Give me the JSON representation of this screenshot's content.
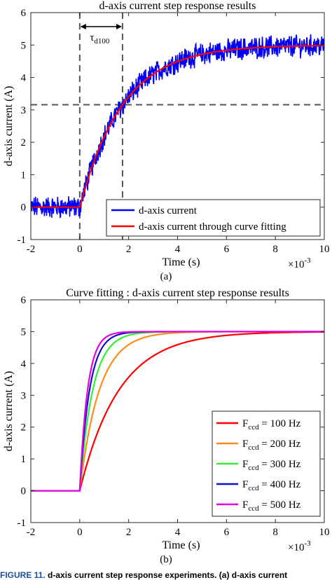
{
  "chart_data": [
    {
      "type": "line",
      "title": "d-axis current step response results",
      "xlabel": "Time (s)",
      "ylabel": "d-axis current (A)",
      "x_exponent_label": "×10",
      "x_exponent": "-3",
      "xlim": [
        -2,
        10
      ],
      "ylim": [
        -1,
        6
      ],
      "xticks": [
        -2,
        0,
        2,
        4,
        6,
        8,
        10
      ],
      "yticks": [
        -1,
        0,
        1,
        2,
        3,
        4,
        5,
        6
      ],
      "grid": false,
      "legend_position": "bottom-right",
      "panel_label": "(a)",
      "step_time": 0,
      "step_amplitude": 5,
      "time_constant": 1.75,
      "reference_lines": {
        "vertical": [
          0,
          1.75
        ],
        "horizontal": [
          3.16
        ],
        "style": "dashed"
      },
      "annotation": {
        "symbol": "τ",
        "subscript": "d100",
        "from": 0,
        "to": 1.75
      },
      "series": [
        {
          "name": "d-axis current",
          "color": "#0000ff",
          "noise_amplitude": 0.3,
          "x": [
            -2,
            -1.5,
            -1,
            -0.5,
            0,
            0.5,
            1,
            1.5,
            1.75,
            2,
            2.5,
            3,
            3.5,
            4,
            5,
            6,
            7,
            8,
            9,
            10
          ],
          "y": [
            0,
            0,
            0,
            0,
            0,
            1.2,
            2.1,
            2.8,
            3.1,
            3.4,
            3.9,
            4.2,
            4.4,
            4.6,
            4.8,
            4.9,
            4.95,
            4.97,
            4.98,
            4.99
          ]
        },
        {
          "name": "d-axis current through curve fitting",
          "color": "#ff0000",
          "x": [
            -2,
            -1.5,
            -1,
            -0.5,
            0,
            0.5,
            1,
            1.5,
            1.75,
            2,
            2.5,
            3,
            3.5,
            4,
            5,
            6,
            7,
            8,
            9,
            10
          ],
          "y": [
            0,
            0,
            0,
            0,
            0,
            1.23,
            2.18,
            2.88,
            3.16,
            3.41,
            3.88,
            4.2,
            4.42,
            4.59,
            4.79,
            4.9,
            4.95,
            4.97,
            4.99,
            4.99
          ]
        }
      ]
    },
    {
      "type": "line",
      "title": "Curve fitting : d-axis current step response results",
      "xlabel": "Time (s)",
      "ylabel": "d-axis current (A)",
      "x_exponent_label": "×10",
      "x_exponent": "-3",
      "xlim": [
        -2,
        10
      ],
      "ylim": [
        -1,
        6
      ],
      "xticks": [
        -2,
        0,
        2,
        4,
        6,
        8,
        10
      ],
      "yticks": [
        -1,
        0,
        1,
        2,
        3,
        4,
        5,
        6
      ],
      "grid": false,
      "legend_position": "bottom-right",
      "panel_label": "(b)",
      "step_time": 0,
      "step_amplitude": 5,
      "series": [
        {
          "name_main": "F",
          "name_sub": "ccd",
          "name_rest": " = 100 Hz",
          "color": "#ff0000",
          "tau": 1.6,
          "x": [
            -2,
            0,
            1,
            2,
            3,
            4,
            6,
            8,
            10
          ],
          "y": [
            0,
            0,
            2.23,
            3.57,
            4.27,
            4.59,
            4.88,
            4.97,
            4.99
          ]
        },
        {
          "name_main": "F",
          "name_sub": "ccd",
          "name_rest": " = 200 Hz",
          "color": "#ff8c1a",
          "tau": 0.8,
          "x": [
            -2,
            0,
            1,
            2,
            3,
            4,
            6,
            8,
            10
          ],
          "y": [
            0,
            0,
            3.57,
            4.59,
            4.88,
            4.97,
            5,
            5,
            5
          ]
        },
        {
          "name_main": "F",
          "name_sub": "ccd",
          "name_rest": " = 300 Hz",
          "color": "#33ee33",
          "tau": 0.53,
          "x": [
            -2,
            0,
            1,
            2,
            3,
            4,
            6,
            8,
            10
          ],
          "y": [
            0,
            0,
            4.24,
            4.89,
            4.98,
            5,
            5,
            5,
            5
          ]
        },
        {
          "name_main": "F",
          "name_sub": "ccd",
          "name_rest": " = 400 Hz",
          "color": "#1010c8",
          "tau": 0.4,
          "x": [
            -2,
            0,
            1,
            2,
            3,
            4,
            6,
            8,
            10
          ],
          "y": [
            0,
            0,
            4.59,
            4.97,
            5,
            5,
            5,
            5,
            5
          ]
        },
        {
          "name_main": "F",
          "name_sub": "ccd",
          "name_rest": " = 500 Hz",
          "color": "#e600e6",
          "tau": 0.32,
          "x": [
            -2,
            0,
            1,
            2,
            3,
            4,
            6,
            8,
            10
          ],
          "y": [
            0,
            0,
            4.78,
            4.99,
            5,
            5,
            5,
            5,
            5
          ]
        }
      ]
    }
  ],
  "caption": {
    "figure_number": "FIGURE 11.",
    "text": " d-axis current step response experiments. (a) d-axis current"
  }
}
